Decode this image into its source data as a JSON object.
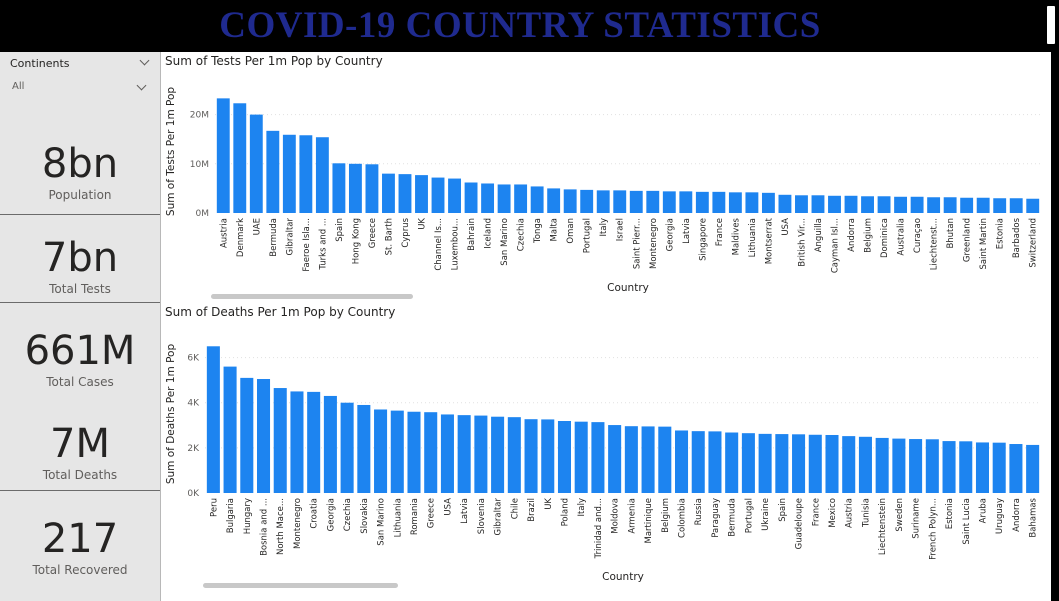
{
  "header": {
    "title": "COVID-19 COUNTRY STATISTICS"
  },
  "slicer": {
    "title": "Continents",
    "value": "All"
  },
  "cards": [
    {
      "value": "8bn",
      "label": "Population"
    },
    {
      "value": "7bn",
      "label": "Total Tests"
    },
    {
      "value": "661M",
      "label": "Total Cases"
    },
    {
      "value": "7M",
      "label": "Total Deaths"
    },
    {
      "value": "217",
      "label": "Total Recovered"
    }
  ],
  "colors": {
    "bar": "#1d84f0",
    "header_bg": "#000000",
    "title": "#1f2a8f"
  },
  "chart_data": [
    {
      "type": "bar",
      "title": "Sum of Tests Per 1m Pop by Country",
      "xlabel": "Country",
      "ylabel": "Sum of Tests Per 1m Pop",
      "ylim": [
        0,
        25000000
      ],
      "yticks": [
        0,
        10000000,
        20000000
      ],
      "ytick_labels": [
        "0M",
        "10M",
        "20M"
      ],
      "grid": true,
      "categories": [
        "Austria",
        "Denmark",
        "UAE",
        "Bermuda",
        "Gibraltar",
        "Faeroe Isla...",
        "Turks and ...",
        "Spain",
        "Hong Kong",
        "Greece",
        "St. Barth",
        "Cyprus",
        "UK",
        "Channel Is...",
        "Luxembou...",
        "Bahrain",
        "Iceland",
        "San Marino",
        "Czechia",
        "Tonga",
        "Malta",
        "Oman",
        "Portugal",
        "Italy",
        "Israel",
        "Saint Pierr...",
        "Montenegro",
        "Georgia",
        "Latvia",
        "Singapore",
        "France",
        "Maldives",
        "Lithuania",
        "Montserrat",
        "USA",
        "British Vir...",
        "Anguilla",
        "Cayman Isl...",
        "Andorra",
        "Belgium",
        "Dominica",
        "Australia",
        "Curaçao",
        "Liechtenst...",
        "Bhutan",
        "Greenland",
        "Saint Martin",
        "Estonia",
        "Barbados",
        "Switzerland"
      ],
      "values": [
        23300000,
        22300000,
        20000000,
        16700000,
        15900000,
        15800000,
        15400000,
        10100000,
        10000000,
        9900000,
        8000000,
        7900000,
        7700000,
        7200000,
        7000000,
        6200000,
        6000000,
        5800000,
        5800000,
        5400000,
        5000000,
        4800000,
        4700000,
        4600000,
        4600000,
        4500000,
        4500000,
        4400000,
        4400000,
        4300000,
        4300000,
        4200000,
        4200000,
        4100000,
        3700000,
        3600000,
        3600000,
        3500000,
        3500000,
        3400000,
        3400000,
        3300000,
        3300000,
        3200000,
        3200000,
        3100000,
        3100000,
        3000000,
        3000000,
        2900000
      ]
    },
    {
      "type": "bar",
      "title": "Sum of Deaths Per 1m Pop by Country",
      "xlabel": "Country",
      "ylabel": "Sum of Deaths Per 1m Pop",
      "ylim": [
        0,
        7000
      ],
      "yticks": [
        0,
        2000,
        4000,
        6000
      ],
      "ytick_labels": [
        "0K",
        "2K",
        "4K",
        "6K"
      ],
      "grid": true,
      "categories": [
        "Peru",
        "Bulgaria",
        "Hungary",
        "Bosnia and ...",
        "North Mace...",
        "Montenegro",
        "Croatia",
        "Georgia",
        "Czechia",
        "Slovakia",
        "San Marino",
        "Lithuania",
        "Romania",
        "Greece",
        "USA",
        "Latvia",
        "Slovenia",
        "Gibraltar",
        "Chile",
        "Brazil",
        "UK",
        "Poland",
        "Italy",
        "Trinidad and...",
        "Moldova",
        "Armenia",
        "Martinique",
        "Belgium",
        "Colombia",
        "Russia",
        "Paraguay",
        "Bermuda",
        "Portugal",
        "Ukraine",
        "Spain",
        "Guadeloupe",
        "France",
        "Mexico",
        "Austria",
        "Tunisia",
        "Liechtenstein",
        "Sweden",
        "Suriname",
        "French Polyn...",
        "Estonia",
        "Saint Lucia",
        "Aruba",
        "Uruguay",
        "Andorra",
        "Bahamas"
      ],
      "values": [
        6500,
        5600,
        5100,
        5050,
        4650,
        4500,
        4480,
        4300,
        4000,
        3900,
        3700,
        3650,
        3600,
        3580,
        3480,
        3450,
        3430,
        3380,
        3360,
        3270,
        3260,
        3190,
        3160,
        3140,
        3010,
        2960,
        2950,
        2940,
        2770,
        2740,
        2730,
        2680,
        2650,
        2620,
        2610,
        2600,
        2580,
        2570,
        2520,
        2490,
        2440,
        2410,
        2390,
        2380,
        2300,
        2290,
        2240,
        2230,
        2170,
        2130
      ]
    }
  ]
}
